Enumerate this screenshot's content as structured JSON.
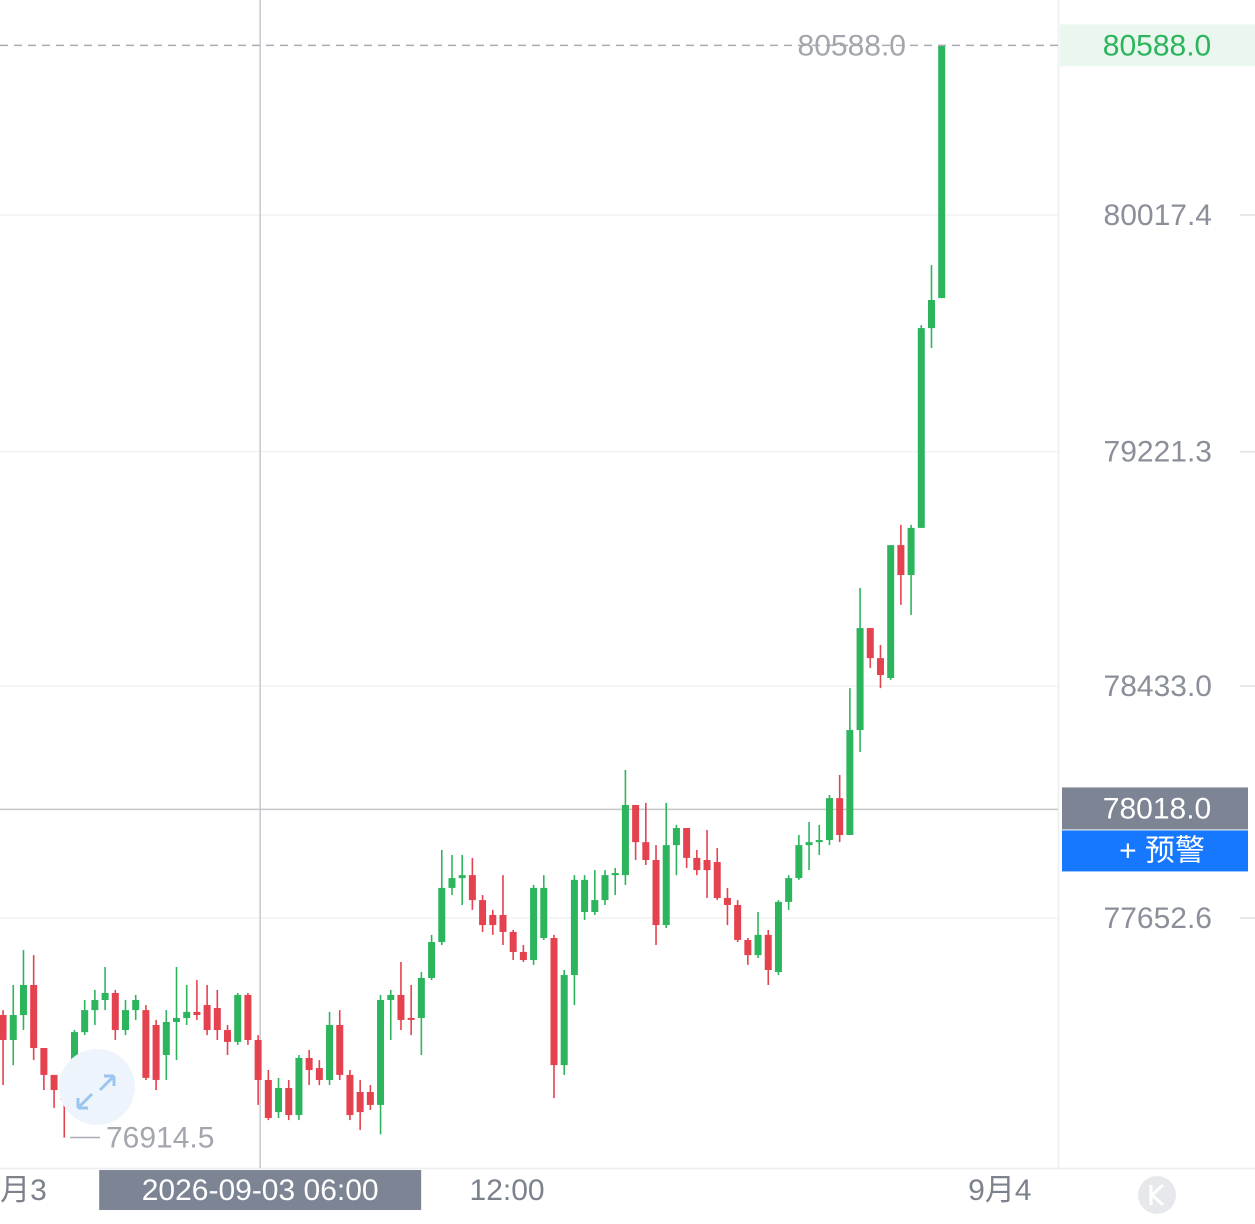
{
  "chart_data": {
    "type": "candlestick",
    "open": [
      77326.5,
      77242.5,
      77326.5,
      77427.5,
      77215.5,
      77125,
      77074,
      77057.5,
      77269,
      77343,
      77377,
      77400.5,
      77276,
      77343,
      77343,
      77293,
      77192,
      77303,
      77316.5,
      77337,
      77360,
      77350,
      77276,
      77236,
      77394,
      77242.5,
      77108,
      77000,
      77081,
      76990,
      77182,
      77148,
      77108,
      77293,
      77125,
      77067.5,
      77067.5,
      77024,
      77377,
      77394,
      77316.5,
      77316.5,
      77451,
      77572,
      77754,
      77787,
      77797,
      77713,
      77663,
      77663,
      77606,
      77538.5,
      77511.5,
      77585.5,
      77585.5,
      77158,
      77461,
      77673,
      77673,
      77713,
      77797,
      77797,
      78033,
      77908,
      77848,
      77629,
      77898,
      77955.5,
      77855,
      77848,
      77841,
      77720,
      77696.5,
      77579,
      77528,
      77596,
      77471,
      77707,
      77787,
      77898,
      77908,
      77915,
      78056,
      77932,
      78285,
      78628,
      78527,
      78460,
      78907,
      78806.5,
      78965,
      79637,
      79738
    ],
    "high": [
      77343,
      77427.5,
      77545,
      77528,
      77215.5,
      77125,
      77108,
      77276,
      77377,
      77411,
      77488,
      77411,
      77377,
      77394,
      77360,
      77310,
      77343,
      77488,
      77427.5,
      77444,
      77427.5,
      77411,
      77293,
      77400.5,
      77400.5,
      77259,
      77141.5,
      77115,
      77108,
      77192,
      77209,
      77175,
      77337,
      77343,
      77141.5,
      77108,
      77091,
      77394,
      77411,
      77505,
      77427.5,
      77471,
      77596,
      77881.5,
      77865,
      77865,
      77855,
      77730,
      77680,
      77797,
      77612.5,
      77562,
      77764,
      77797,
      77596,
      77478,
      77797,
      77797,
      77814,
      77814,
      77821,
      78151,
      78033,
      78040,
      77898,
      78040,
      77966,
      77955.5,
      77881.5,
      77949,
      77888,
      77754,
      77713,
      77585.5,
      77673,
      77612.5,
      77713,
      77797,
      77932,
      77976,
      77966,
      78066.5,
      78134,
      78426,
      78763,
      78628,
      78571,
      78907,
      78975,
      78975,
      79647,
      79849,
      80588
    ],
    "low": [
      77091,
      77158,
      77276,
      77175,
      77074,
      77014,
      76914.5,
      77007,
      77259,
      77293,
      77343,
      77242.5,
      77259,
      77310,
      77108,
      77074,
      77108,
      77175,
      77293,
      77310,
      77259,
      77242.5,
      77192,
      77226,
      77226,
      77024,
      76973,
      76980,
      76973,
      76973,
      77091,
      77091,
      77091,
      77108,
      76973,
      76940,
      77007,
      76925,
      77242.5,
      77276,
      77259,
      77192,
      77444,
      77562,
      77730,
      77696.5,
      77680,
      77606,
      77596,
      77562,
      77511.5,
      77505,
      77495,
      77579,
      77047,
      77125,
      77360,
      77646,
      77663,
      77696.5,
      77730,
      77764,
      77848,
      77831,
      77562,
      77619,
      77797,
      77821,
      77797,
      77720,
      77713,
      77629,
      77572,
      77495,
      77518,
      77427.5,
      77461,
      77680,
      77781,
      77814,
      77865,
      77898,
      77908,
      77932,
      78211,
      78494,
      78426,
      78453,
      78706,
      78672,
      78965,
      79570,
      79738
    ],
    "close": [
      77242.5,
      77326.5,
      77427.5,
      77215.5,
      77125,
      77074,
      77041,
      77269,
      77343,
      77377,
      77400.5,
      77276,
      77343,
      77377,
      77115,
      77108,
      77303,
      77316.5,
      77337,
      77326.5,
      77276,
      77276,
      77236,
      77394,
      77242.5,
      77108,
      76980,
      77081,
      76990,
      77182,
      77141.5,
      77108,
      77293,
      77125,
      76990,
      77000,
      77024,
      77377,
      77394,
      77310,
      77310,
      77451,
      77572,
      77754,
      77787,
      77797,
      77713,
      77629,
      77629,
      77606,
      77538.5,
      77511.5,
      77754,
      77754,
      77158,
      77461,
      77781,
      77781,
      77713,
      77797,
      77804,
      78033,
      77908,
      77848,
      77629,
      77898,
      77955.5,
      77855,
      77814,
      77814,
      77720,
      77696.5,
      77579,
      77528,
      77596,
      77478,
      77707,
      77787,
      77898,
      77908,
      77915,
      78056,
      77932,
      78285,
      78628,
      78527,
      78470,
      78907,
      78806.5,
      78965,
      79637,
      79731.5,
      80588
    ],
    "up_color": "#2db55d",
    "down_color": "#e5424f",
    "xlim": [
      -0.3,
      103.4
    ],
    "xticks": [
      {
        "value": 2,
        "label": "月3"
      },
      {
        "value": 49.4,
        "label": "12:00"
      },
      {
        "value": 97.7,
        "label": "9月4"
      }
    ],
    "ylim": [
      76811.9,
      80740.6
    ],
    "yticks": [
      77652.6,
      {
        "value": 78433,
        "label": "78433.0"
      },
      79221.3,
      80017.4
    ],
    "grid": true,
    "max_label": {
      "value": 80588,
      "label": "80588.0"
    },
    "min_label": 76914.5,
    "last_price": {
      "value": 80588,
      "label": "80588.0"
    },
    "crosshair": {
      "x": {
        "value": 25.2,
        "label": "2026-09-03 06:00"
      },
      "y": {
        "value": 78018,
        "label": "78018.0"
      }
    },
    "alert_button": "+ 预警"
  }
}
